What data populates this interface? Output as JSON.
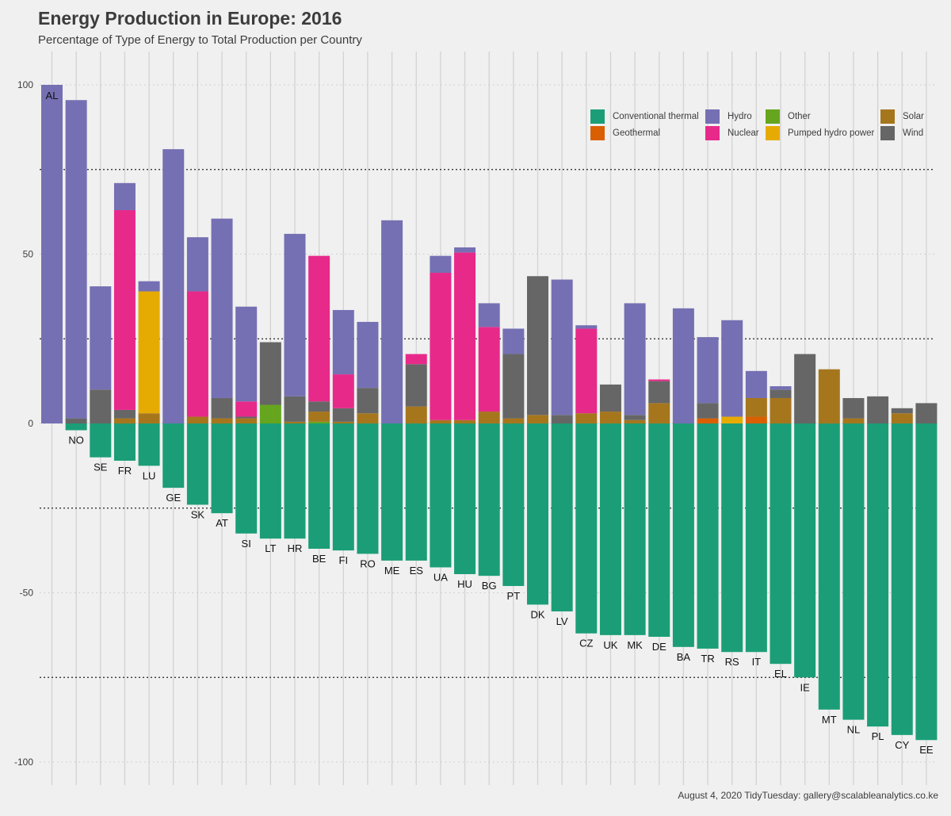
{
  "title": "Energy Production in Europe: 2016",
  "subtitle": "Percentage of Type of Energy to Total Production per Country",
  "caption": "August 4, 2020 TidyTuesday: gallery@scalableanalytics.co.ke",
  "legend": [
    {
      "name": "Conventional thermal",
      "color": "#1b9e77"
    },
    {
      "name": "Hydro",
      "color": "#7570b3"
    },
    {
      "name": "Other",
      "color": "#66a61e"
    },
    {
      "name": "Solar",
      "color": "#a6761d"
    },
    {
      "name": "Geothermal",
      "color": "#d95f02"
    },
    {
      "name": "Nuclear",
      "color": "#e7298a"
    },
    {
      "name": "Pumped hydro power",
      "color": "#e6ab02"
    },
    {
      "name": "Wind",
      "color": "#666666"
    }
  ],
  "chart_data": {
    "type": "bar",
    "stacked": true,
    "title": "Energy Production in Europe: 2016",
    "subtitle": "Percentage of Type of Energy to Total Production per Country",
    "ylim": [
      -100,
      100
    ],
    "yticks": [
      -100,
      -50,
      0,
      50,
      100
    ],
    "grid": true,
    "legend_position": "top-right",
    "categories": [
      "AL",
      "NO",
      "SE",
      "FR",
      "LU",
      "GE",
      "SK",
      "AT",
      "SI",
      "LT",
      "HR",
      "BE",
      "FI",
      "RO",
      "ME",
      "ES",
      "UA",
      "HU",
      "BG",
      "PT",
      "DK",
      "LV",
      "CZ",
      "UK",
      "MK",
      "DE",
      "BA",
      "TR",
      "RS",
      "IT",
      "EL",
      "IE",
      "MT",
      "NL",
      "PL",
      "CY",
      "EE"
    ],
    "series": [
      {
        "name": "Conventional thermal",
        "color": "#1b9e77",
        "values": [
          0,
          -2,
          -10,
          -11,
          -12.5,
          -19,
          -24,
          -26.5,
          -32.5,
          -34,
          -34,
          -37,
          -37.5,
          -38.5,
          -40.5,
          -40.5,
          -42.5,
          -44.5,
          -45,
          -48,
          -53.5,
          -55.5,
          -62,
          -62.5,
          -62.5,
          -63,
          -66,
          -66.5,
          -67.5,
          -67.5,
          -71,
          -75,
          -84.5,
          -87.5,
          -89.5,
          -92,
          -93.5
        ]
      },
      {
        "name": "Geothermal",
        "color": "#d95f02",
        "values": [
          0,
          0,
          0,
          0,
          0,
          0,
          0,
          0,
          0,
          0,
          0,
          0,
          0,
          0,
          0,
          0,
          0,
          0,
          0,
          0,
          0,
          0,
          0,
          0,
          0,
          0,
          0,
          1.5,
          0,
          2,
          0,
          0,
          0,
          0,
          0,
          0,
          0
        ]
      },
      {
        "name": "Other",
        "color": "#66a61e",
        "values": [
          0,
          0,
          0,
          0,
          0,
          0,
          0,
          0,
          0,
          5.5,
          0,
          0.5,
          0,
          0,
          0,
          0,
          0,
          0,
          0,
          0,
          0,
          0,
          0,
          0,
          0,
          0,
          0,
          0,
          0,
          0,
          0,
          0,
          0,
          0,
          0,
          0,
          0
        ]
      },
      {
        "name": "Solar",
        "color": "#a6761d",
        "values": [
          0,
          0,
          0,
          1.5,
          3,
          0,
          2,
          1.5,
          1.5,
          0,
          0.5,
          3,
          0.5,
          3,
          0,
          5,
          1,
          1,
          3.5,
          1.5,
          2.5,
          0,
          3,
          3.5,
          1,
          6,
          0,
          0,
          0,
          5.5,
          7.5,
          0,
          16,
          1.5,
          0,
          3,
          0
        ]
      },
      {
        "name": "Pumped hydro power",
        "color": "#e6ab02",
        "values": [
          0,
          0,
          0,
          0,
          36,
          0,
          0,
          0,
          0,
          0,
          0,
          0,
          0,
          0,
          0,
          0,
          0,
          0,
          0,
          0,
          0,
          0,
          0,
          0,
          0,
          0,
          0,
          0,
          2,
          0,
          0,
          0,
          0,
          0,
          0,
          0,
          0
        ]
      },
      {
        "name": "Wind",
        "color": "#666666",
        "values": [
          0,
          1.5,
          10,
          2.5,
          0,
          0,
          0,
          6,
          0.5,
          18.5,
          7.5,
          3,
          4,
          7.5,
          0,
          12.5,
          0,
          0,
          0,
          19,
          41,
          2.5,
          0,
          8,
          1.5,
          6.5,
          0,
          4.5,
          0,
          0,
          2.5,
          20.5,
          0,
          6,
          8,
          1.5,
          6
        ]
      },
      {
        "name": "Nuclear",
        "color": "#e7298a",
        "values": [
          0,
          0,
          0,
          59,
          0,
          0,
          37,
          0,
          4.5,
          0,
          0,
          43,
          10,
          0,
          0,
          3,
          43.5,
          49.5,
          25,
          0,
          0,
          0,
          25,
          0,
          0,
          0.5,
          0,
          0,
          0,
          0,
          0,
          0,
          0,
          0,
          0,
          0,
          0
        ]
      },
      {
        "name": "Hydro",
        "color": "#7570b3",
        "values": [
          100,
          94,
          30.5,
          8,
          3,
          81,
          16,
          53,
          28,
          0,
          48,
          0,
          19,
          19.5,
          60,
          0,
          5,
          1.5,
          7,
          7.5,
          0,
          40,
          1,
          0,
          33,
          0,
          34,
          19.5,
          28.5,
          8,
          1,
          0,
          0,
          0,
          0,
          0,
          0
        ]
      }
    ]
  }
}
